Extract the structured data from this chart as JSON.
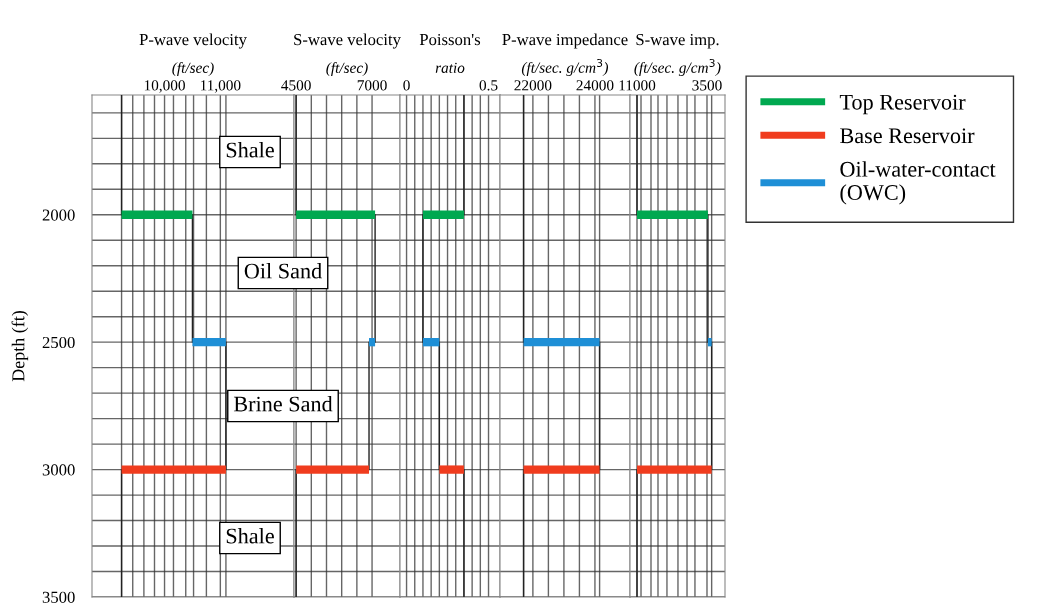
{
  "chart_data": [
    {
      "type": "line",
      "title": "P-wave velocity",
      "xlabel": "(ft/sec)",
      "ylabel": "Depth (ft)",
      "xlim": [
        8700,
        12320
      ],
      "xticks": [
        {
          "value": 9230,
          "label": null
        },
        {
          "value": 9430,
          "label": null
        },
        {
          "value": 9630,
          "label": null
        },
        {
          "value": 9820,
          "label": null
        },
        {
          "value": 10000,
          "label": "10,000"
        },
        {
          "value": 10160,
          "label": null
        },
        {
          "value": 10380,
          "label": null
        },
        {
          "value": 10520,
          "label": null
        },
        {
          "value": 10750,
          "label": null
        },
        {
          "value": 11000,
          "label": "11,000"
        },
        {
          "value": 11100,
          "label": null
        }
      ],
      "ylim": [
        3500,
        1530
      ],
      "yticks": [
        {
          "value": 1600,
          "label": null
        },
        {
          "value": 1700,
          "label": null
        },
        {
          "value": 1800,
          "label": null
        },
        {
          "value": 1900,
          "label": null
        },
        2000,
        {
          "value": 2100,
          "label": null
        },
        {
          "value": 2200,
          "label": null
        },
        {
          "value": 2300,
          "label": null
        },
        {
          "value": 2400,
          "label": null
        },
        2500,
        {
          "value": 2600,
          "label": null
        },
        {
          "value": 2700,
          "label": null
        },
        {
          "value": 2800,
          "label": null
        },
        {
          "value": 2900,
          "label": null
        },
        3000,
        {
          "value": 3100,
          "label": null
        },
        {
          "value": 3200,
          "label": null
        },
        {
          "value": 3300,
          "label": null
        },
        {
          "value": 3400,
          "label": null
        },
        3500
      ],
      "grid": true,
      "legend": "right",
      "line_style": "solid",
      "series": [
        {
          "color": "#222222",
          "x": [
            9230,
            9230,
            10500,
            10500,
            11100,
            11100,
            9230,
            9230
          ],
          "values": [
            1530,
            2000,
            2000,
            2500,
            2500,
            3000,
            3000,
            3500
          ]
        },
        {
          "name": "Top Reservoir",
          "color": "#00a850",
          "x": [
            9230,
            10500
          ],
          "values": [
            2000,
            2000
          ]
        },
        {
          "name": "Base Reservoir",
          "color": "#f03c1e",
          "x": [
            9230,
            11100
          ],
          "values": [
            3000,
            3000
          ]
        },
        {
          "name": "Oil-water-contact\n(OWC)",
          "color": "#1e8fd6",
          "x": [
            10500,
            11100
          ],
          "values": [
            2500,
            2500
          ]
        }
      ],
      "annotations": [
        "Shale",
        "Oil Sand",
        "Brine Sand",
        "Shale"
      ]
    },
    {
      "type": "line",
      "title": "S-wave velocity",
      "xlabel": "(ft/sec)",
      "xlim": [
        4430,
        7920
      ],
      "xticks": [
        4500,
        {
          "value": 5000,
          "label": null
        },
        {
          "value": 5500,
          "label": null
        },
        {
          "value": 6000,
          "label": null
        },
        {
          "value": 6500,
          "label": null
        },
        7000
      ],
      "ylim": [
        3500,
        1530
      ],
      "yticks": [
        {
          "value": 1600,
          "label": null
        },
        {
          "value": 1700,
          "label": null
        },
        {
          "value": 1800,
          "label": null
        },
        {
          "value": 1900,
          "label": null
        },
        2000,
        {
          "value": 2100,
          "label": null
        },
        {
          "value": 2200,
          "label": null
        },
        {
          "value": 2300,
          "label": null
        },
        {
          "value": 2400,
          "label": null
        },
        2500,
        {
          "value": 2600,
          "label": null
        },
        {
          "value": 2700,
          "label": null
        },
        {
          "value": 2800,
          "label": null
        },
        {
          "value": 2900,
          "label": null
        },
        3000,
        {
          "value": 3100,
          "label": null
        },
        {
          "value": 3200,
          "label": null
        },
        {
          "value": 3300,
          "label": null
        },
        {
          "value": 3400,
          "label": null
        },
        3500
      ],
      "grid": true,
      "tick_labels": "x",
      "line_style": "solid",
      "series": [
        {
          "color": "#222222",
          "x": [
            4500,
            4500,
            7100,
            7100,
            6900,
            6900,
            4500,
            4500
          ],
          "values": [
            1530,
            2000,
            2000,
            2500,
            2500,
            3000,
            3000,
            3500
          ]
        },
        {
          "color": "#00a850",
          "x": [
            4500,
            7100
          ],
          "values": [
            2000,
            2000
          ]
        },
        {
          "color": "#f03c1e",
          "x": [
            4500,
            6900
          ],
          "values": [
            3000,
            3000
          ]
        },
        {
          "color": "#1e8fd6",
          "x": [
            6900,
            7100
          ],
          "values": [
            2500,
            2500
          ]
        }
      ]
    },
    {
      "type": "line",
      "title": "Poisson's",
      "xlabel": "ratio",
      "xlim": [
        -0.04,
        0.57
      ],
      "xticks": [
        0,
        {
          "value": 0.05,
          "label": null
        },
        {
          "value": 0.1,
          "label": null
        },
        {
          "value": 0.15,
          "label": null
        },
        {
          "value": 0.2,
          "label": null
        },
        {
          "value": 0.25,
          "label": null
        },
        {
          "value": 0.3,
          "label": null
        },
        {
          "value": 0.35,
          "label": null
        },
        {
          "value": 0.4,
          "label": null
        },
        {
          "value": 0.45,
          "label": null
        },
        0.5
      ],
      "ylim": [
        3500,
        1530
      ],
      "yticks": [
        {
          "value": 1600,
          "label": null
        },
        {
          "value": 1700,
          "label": null
        },
        {
          "value": 1800,
          "label": null
        },
        {
          "value": 1900,
          "label": null
        },
        2000,
        {
          "value": 2100,
          "label": null
        },
        {
          "value": 2200,
          "label": null
        },
        {
          "value": 2300,
          "label": null
        },
        {
          "value": 2400,
          "label": null
        },
        2500,
        {
          "value": 2600,
          "label": null
        },
        {
          "value": 2700,
          "label": null
        },
        {
          "value": 2800,
          "label": null
        },
        {
          "value": 2900,
          "label": null
        },
        3000,
        {
          "value": 3100,
          "label": null
        },
        {
          "value": 3200,
          "label": null
        },
        {
          "value": 3300,
          "label": null
        },
        {
          "value": 3400,
          "label": null
        },
        3500
      ],
      "grid": true,
      "tick_labels": "x",
      "line_style": "solid",
      "series": [
        {
          "color": "#222222",
          "x": [
            0.35,
            0.35,
            0.1,
            0.1,
            0.2,
            0.2,
            0.35,
            0.35
          ],
          "values": [
            1530,
            2000,
            2000,
            2500,
            2500,
            3000,
            3000,
            3500
          ]
        },
        {
          "color": "#00a850",
          "x": [
            0.1,
            0.35
          ],
          "values": [
            2000,
            2000
          ]
        },
        {
          "color": "#f03c1e",
          "x": [
            0.2,
            0.35
          ],
          "values": [
            3000,
            3000
          ]
        },
        {
          "color": "#1e8fd6",
          "x": [
            0.1,
            0.2
          ],
          "values": [
            2500,
            2500
          ]
        }
      ]
    },
    {
      "type": "line",
      "title": "P-wave impedance",
      "xlabel": "(ft/sec. g/cm$^{3}$)",
      "xlim": [
        20940,
        25130
      ],
      "xticks": [
        {
          "value": 21700,
          "label": null
        },
        22000,
        {
          "value": 22500,
          "label": null
        },
        {
          "value": 23000,
          "label": null
        },
        {
          "value": 23500,
          "label": null
        },
        24000,
        {
          "value": 24150,
          "label": null
        }
      ],
      "ylim": [
        3500,
        1530
      ],
      "yticks": [
        {
          "value": 1600,
          "label": null
        },
        {
          "value": 1700,
          "label": null
        },
        {
          "value": 1800,
          "label": null
        },
        {
          "value": 1900,
          "label": null
        },
        2000,
        {
          "value": 2100,
          "label": null
        },
        {
          "value": 2200,
          "label": null
        },
        {
          "value": 2300,
          "label": null
        },
        {
          "value": 2400,
          "label": null
        },
        2500,
        {
          "value": 2600,
          "label": null
        },
        {
          "value": 2700,
          "label": null
        },
        {
          "value": 2800,
          "label": null
        },
        {
          "value": 2900,
          "label": null
        },
        3000,
        {
          "value": 3100,
          "label": null
        },
        {
          "value": 3200,
          "label": null
        },
        {
          "value": 3300,
          "label": null
        },
        {
          "value": 3400,
          "label": null
        },
        3500
      ],
      "grid": true,
      "tick_labels": "x",
      "line_style": "solid",
      "series": [
        {
          "color": "#222222",
          "x": [
            21700,
            21700,
            24150,
            24150,
            21700,
            21700
          ],
          "values": [
            1530,
            2500,
            2500,
            3000,
            3000,
            3500
          ]
        },
        {
          "color": "#f03c1e",
          "x": [
            21700,
            24150
          ],
          "values": [
            3000,
            3000
          ]
        },
        {
          "color": "#1e8fd6",
          "x": [
            21700,
            24150
          ],
          "values": [
            2500,
            2500
          ]
        }
      ]
    },
    {
      "type": "line",
      "title": "S-wave imp.",
      "xlabel": "(ft/sec. g/cm$^{3}$)",
      "xlim": [
        11750,
        1570
      ],
      "xticks": [
        11000,
        {
          "value": 10570,
          "label": null
        },
        {
          "value": 9500,
          "label": null
        },
        {
          "value": 8750,
          "label": null
        },
        {
          "value": 7790,
          "label": null
        },
        {
          "value": 6610,
          "label": null
        },
        {
          "value": 5640,
          "label": null
        },
        {
          "value": 4790,
          "label": null
        },
        3500,
        {
          "value": 3000,
          "label": null
        }
      ],
      "ylim": [
        3500,
        1530
      ],
      "yticks": [
        {
          "value": 1600,
          "label": null
        },
        {
          "value": 1700,
          "label": null
        },
        {
          "value": 1800,
          "label": null
        },
        {
          "value": 1900,
          "label": null
        },
        2000,
        {
          "value": 2100,
          "label": null
        },
        {
          "value": 2200,
          "label": null
        },
        {
          "value": 2300,
          "label": null
        },
        {
          "value": 2400,
          "label": null
        },
        2500,
        {
          "value": 2600,
          "label": null
        },
        {
          "value": 2700,
          "label": null
        },
        {
          "value": 2800,
          "label": null
        },
        {
          "value": 2900,
          "label": null
        },
        3000,
        {
          "value": 3100,
          "label": null
        },
        {
          "value": 3200,
          "label": null
        },
        {
          "value": 3300,
          "label": null
        },
        {
          "value": 3400,
          "label": null
        },
        3500
      ],
      "grid": true,
      "tick_labels": "x",
      "line_style": "solid",
      "series": [
        {
          "color": "#222222",
          "x": [
            11000,
            11000,
            3400,
            3400,
            3000,
            3000,
            11000,
            11000
          ],
          "values": [
            1530,
            2000,
            2000,
            2500,
            2500,
            3000,
            3000,
            3500
          ]
        },
        {
          "color": "#00a850",
          "x": [
            11000,
            3400
          ],
          "values": [
            2000,
            2000
          ]
        },
        {
          "color": "#f03c1e",
          "x": [
            11000,
            3000
          ],
          "values": [
            3000,
            3000
          ]
        },
        {
          "color": "#1e8fd6",
          "x": [
            3400,
            3000
          ],
          "values": [
            2500,
            2500
          ]
        }
      ]
    }
  ]
}
